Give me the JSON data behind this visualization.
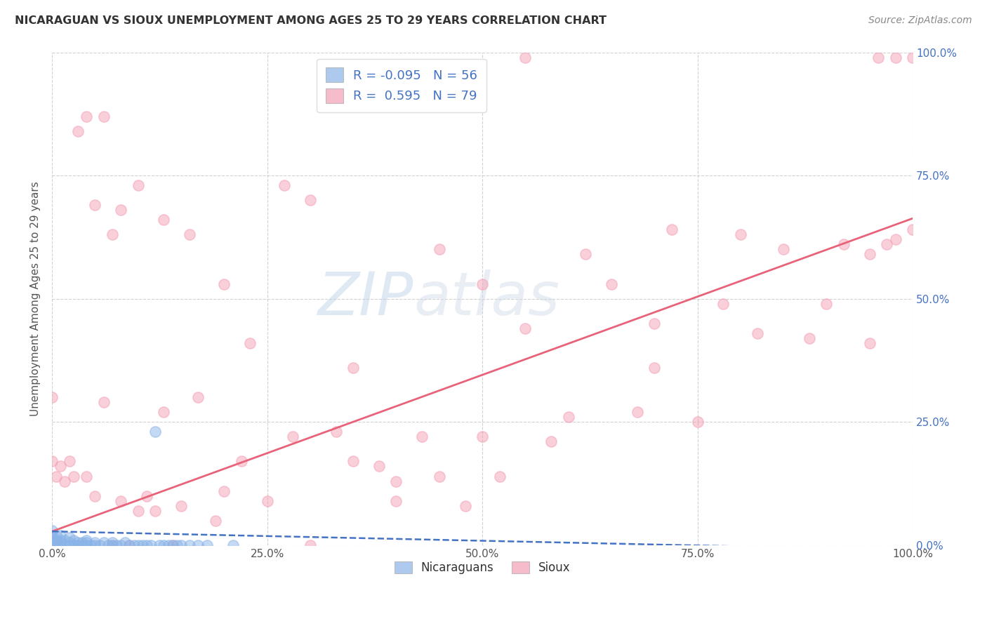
{
  "title": "NICARAGUAN VS SIOUX UNEMPLOYMENT AMONG AGES 25 TO 29 YEARS CORRELATION CHART",
  "source": "Source: ZipAtlas.com",
  "ylabel": "Unemployment Among Ages 25 to 29 years",
  "xlim": [
    0.0,
    1.0
  ],
  "ylim": [
    0.0,
    1.0
  ],
  "x_ticks": [
    0.0,
    0.25,
    0.5,
    0.75,
    1.0
  ],
  "x_tick_labels": [
    "0.0%",
    "25.0%",
    "50.0%",
    "75.0%",
    "100.0%"
  ],
  "y_ticks": [
    0.0,
    0.25,
    0.5,
    0.75,
    1.0
  ],
  "y_tick_labels_right": [
    "0.0%",
    "25.0%",
    "50.0%",
    "75.0%",
    "100.0%"
  ],
  "nicaraguan_color": "#8ab4e8",
  "sioux_color": "#f4a0b5",
  "nicaraguan_line_color": "#4472c4",
  "sioux_line_color": "#e8637a",
  "background_color": "#ffffff",
  "legend_R_nicaraguan": "-0.095",
  "legend_N_nicaraguan": "56",
  "legend_R_sioux": "0.595",
  "legend_N_sioux": "79",
  "sioux_intercept": 0.028,
  "sioux_slope": 0.635,
  "nicaraguan_intercept": 0.028,
  "nicaraguan_slope": -0.038,
  "nicaraguan_x": [
    0.0,
    0.0,
    0.0,
    0.0,
    0.0,
    0.0,
    0.005,
    0.005,
    0.005,
    0.005,
    0.01,
    0.01,
    0.01,
    0.01,
    0.015,
    0.015,
    0.02,
    0.02,
    0.02,
    0.025,
    0.025,
    0.03,
    0.03,
    0.035,
    0.035,
    0.04,
    0.04,
    0.04,
    0.045,
    0.05,
    0.05,
    0.055,
    0.06,
    0.065,
    0.07,
    0.07,
    0.075,
    0.08,
    0.085,
    0.09,
    0.095,
    0.1,
    0.105,
    0.11,
    0.115,
    0.12,
    0.125,
    0.13,
    0.135,
    0.14,
    0.145,
    0.15,
    0.16,
    0.17,
    0.18,
    0.21
  ],
  "nicaraguan_y": [
    0.0,
    0.005,
    0.01,
    0.015,
    0.02,
    0.03,
    0.0,
    0.005,
    0.01,
    0.02,
    0.0,
    0.005,
    0.01,
    0.02,
    0.0,
    0.01,
    0.0,
    0.005,
    0.015,
    0.0,
    0.01,
    0.0,
    0.005,
    0.0,
    0.005,
    0.0,
    0.005,
    0.01,
    0.0,
    0.0,
    0.005,
    0.0,
    0.005,
    0.0,
    0.0,
    0.005,
    0.0,
    0.0,
    0.005,
    0.0,
    0.0,
    0.0,
    0.0,
    0.0,
    0.0,
    0.23,
    0.0,
    0.0,
    0.0,
    0.0,
    0.0,
    0.0,
    0.0,
    0.0,
    0.0,
    0.0
  ],
  "sioux_x": [
    0.0,
    0.0,
    0.005,
    0.01,
    0.015,
    0.02,
    0.025,
    0.03,
    0.04,
    0.05,
    0.06,
    0.07,
    0.08,
    0.09,
    0.1,
    0.11,
    0.12,
    0.13,
    0.14,
    0.15,
    0.17,
    0.19,
    0.2,
    0.22,
    0.25,
    0.28,
    0.3,
    0.33,
    0.35,
    0.38,
    0.4,
    0.43,
    0.45,
    0.48,
    0.5,
    0.52,
    0.55,
    0.58,
    0.6,
    0.62,
    0.65,
    0.68,
    0.7,
    0.72,
    0.75,
    0.78,
    0.8,
    0.82,
    0.85,
    0.88,
    0.9,
    0.92,
    0.95,
    0.95,
    0.96,
    0.97,
    0.98,
    0.98,
    1.0,
    1.0,
    0.03,
    0.04,
    0.05,
    0.06,
    0.07,
    0.08,
    0.1,
    0.13,
    0.16,
    0.2,
    0.23,
    0.27,
    0.3,
    0.35,
    0.4,
    0.45,
    0.5,
    0.55,
    0.7
  ],
  "sioux_y": [
    0.17,
    0.3,
    0.14,
    0.16,
    0.13,
    0.17,
    0.14,
    0.0,
    0.14,
    0.1,
    0.29,
    0.0,
    0.09,
    0.0,
    0.07,
    0.1,
    0.07,
    0.27,
    0.0,
    0.08,
    0.3,
    0.05,
    0.11,
    0.17,
    0.09,
    0.22,
    0.0,
    0.23,
    0.17,
    0.16,
    0.09,
    0.22,
    0.14,
    0.08,
    0.22,
    0.14,
    0.44,
    0.21,
    0.26,
    0.59,
    0.53,
    0.27,
    0.36,
    0.64,
    0.25,
    0.49,
    0.63,
    0.43,
    0.6,
    0.42,
    0.49,
    0.61,
    0.41,
    0.59,
    0.99,
    0.61,
    0.99,
    0.62,
    0.64,
    0.99,
    0.84,
    0.87,
    0.69,
    0.87,
    0.63,
    0.68,
    0.73,
    0.66,
    0.63,
    0.53,
    0.41,
    0.73,
    0.7,
    0.36,
    0.13,
    0.6,
    0.53,
    0.99,
    0.45
  ]
}
